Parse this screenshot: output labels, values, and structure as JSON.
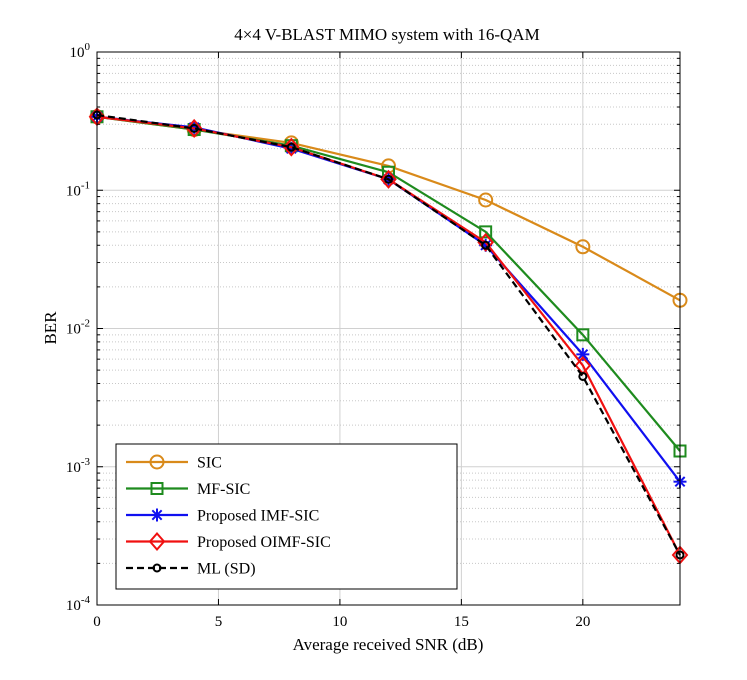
{
  "chart_data": {
    "type": "line",
    "title": "4×4 V-BLAST MIMO system with 16-QAM",
    "xlabel": "Average received SNR (dB)",
    "ylabel": "BER",
    "xlim": [
      0,
      24
    ],
    "ylim": [
      0.0001,
      1
    ],
    "yscale": "log",
    "grid": true,
    "x_ticks": [
      {
        "value": 0,
        "label": "0"
      },
      {
        "value": 5,
        "label": "5"
      },
      {
        "value": 10,
        "label": "10"
      },
      {
        "value": 15,
        "label": "15"
      },
      {
        "value": 20,
        "label": "20"
      }
    ],
    "y_ticks": [
      {
        "value": 1,
        "base": "10",
        "exp": "0"
      },
      {
        "value": 0.1,
        "base": "10",
        "exp": "-1"
      },
      {
        "value": 0.01,
        "base": "10",
        "exp": "-2"
      },
      {
        "value": 0.001,
        "base": "10",
        "exp": "-3"
      },
      {
        "value": 0.0001,
        "base": "10",
        "exp": "-4"
      }
    ],
    "legend_position": "bottom-left",
    "x": [
      0,
      4,
      8,
      12,
      16,
      20,
      24
    ],
    "series": [
      {
        "name": "SIC",
        "color": "#D98A1A",
        "marker": "circle",
        "dash": "solid",
        "values": [
          0.34,
          0.275,
          0.22,
          0.15,
          0.085,
          0.039,
          0.016
        ]
      },
      {
        "name": "MF-SIC",
        "color": "#1E8B1E",
        "marker": "square",
        "dash": "solid",
        "values": [
          0.34,
          0.275,
          0.21,
          0.135,
          0.05,
          0.009,
          0.0013
        ]
      },
      {
        "name": "Proposed IMF-SIC",
        "color": "#1010F0",
        "marker": "asterisk",
        "dash": "solid",
        "values": [
          0.34,
          0.285,
          0.2,
          0.12,
          0.04,
          0.0065,
          0.00078
        ]
      },
      {
        "name": "Proposed OIMF-SIC",
        "color": "#F01010",
        "marker": "diamond",
        "dash": "solid",
        "values": [
          0.34,
          0.28,
          0.205,
          0.12,
          0.042,
          0.0054,
          0.00023
        ]
      },
      {
        "name": "ML (SD)",
        "color": "#000000",
        "marker": "small-circle",
        "dash": "dashed",
        "values": [
          0.35,
          0.28,
          0.205,
          0.12,
          0.04,
          0.0045,
          0.00023
        ]
      }
    ]
  }
}
